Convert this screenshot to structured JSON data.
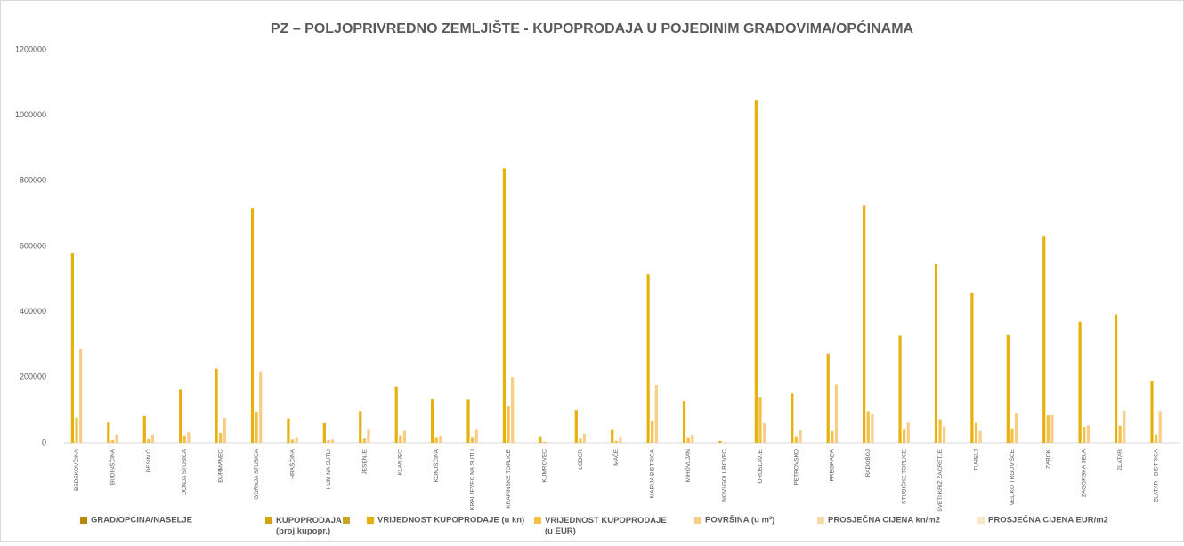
{
  "chart_data": {
    "type": "bar",
    "title": "PZ – POLJOPRIVREDNO ZEMLJIŠTE - KUPOPRODAJA  U POJEDINIM GRADOVIMA/OPĆINAMA",
    "categories": [
      "BEDEKOVČINA",
      "BUDINŠČINA",
      "DESINIĆ",
      "DONJA STUBICA",
      "ĐURMANEC",
      "GORNJA STUBICA",
      "HRAŠĆINA",
      "HUM NA SUTLI",
      "JESENJE",
      "KLANJEC",
      "KONJŠČINA",
      "KRALJEVEC NA SUTLI",
      "KRAPINSKE TOPLICE",
      "KUMROVEC",
      "LOBOR",
      "MAČE",
      "MARIJA BISTRICA",
      "MIHOVLJAN",
      "NOVI GOLUBOVEC",
      "OROSLAVJE",
      "PETROVSKO",
      "PREGRADA",
      "RADOBOJ",
      "STUBIČKE TOPLICE",
      "SVETI KRIŽ ZAČRETJE",
      "TUHELJ",
      "VELIKO TRGOVIŠĆE",
      "ZABOK",
      "ZAGORSKA SELA",
      "ZLATAR",
      "ZLATAR - BISTRICA"
    ],
    "series": [
      {
        "name": "GRAD/OPĆINA/NASELJE",
        "color": "#b8860b",
        "values": [
          null,
          null,
          null,
          null,
          null,
          null,
          null,
          null,
          null,
          null,
          null,
          null,
          null,
          null,
          null,
          null,
          null,
          null,
          null,
          null,
          null,
          null,
          null,
          null,
          null,
          null,
          null,
          null,
          null,
          null,
          null
        ]
      },
      {
        "name": "KUPOPRODAJA (broj kupopr.)",
        "color": "#d4a20e",
        "values": [
          null,
          null,
          null,
          null,
          null,
          null,
          null,
          null,
          null,
          null,
          null,
          null,
          null,
          null,
          null,
          null,
          null,
          null,
          null,
          null,
          null,
          null,
          null,
          null,
          null,
          null,
          null,
          null,
          null,
          null,
          null
        ]
      },
      {
        "name": "VRIJEDNOST KUPOPRODAJE (u kn)",
        "color": "#e8b00f",
        "values": [
          580000,
          62000,
          82000,
          162000,
          226000,
          716000,
          75000,
          60000,
          97000,
          172000,
          133000,
          132000,
          838000,
          20000,
          100000,
          42000,
          515000,
          127000,
          6000,
          1045000,
          151000,
          272000,
          724000,
          327000,
          546000,
          459000,
          329000,
          632000,
          370000,
          392000,
          188000
        ]
      },
      {
        "name": "VRIJEDNOST KUPOPRODAJE (u EUR)",
        "color": "#f3bf45",
        "values": [
          77000,
          8000,
          11000,
          22000,
          30000,
          95000,
          10000,
          8000,
          13000,
          23000,
          18000,
          18000,
          111000,
          3000,
          13000,
          6000,
          68000,
          17000,
          1000,
          139000,
          20000,
          36000,
          96000,
          43000,
          72000,
          61000,
          44000,
          84000,
          49000,
          52000,
          25000
        ]
      },
      {
        "name": "POVRŠINA (u m²)",
        "color": "#f8cd85",
        "values": [
          288000,
          25000,
          25000,
          32000,
          76000,
          218000,
          18000,
          10000,
          43000,
          37000,
          22000,
          42000,
          200000,
          2000,
          28000,
          18000,
          176000,
          25000,
          1000,
          60000,
          38000,
          178000,
          88000,
          62000,
          50000,
          36000,
          92000,
          84000,
          53000,
          98000,
          97000
        ]
      },
      {
        "name": "PROSJEČNA CIJENA kn/m2",
        "color": "#f9d9a5",
        "values": [
          null,
          null,
          null,
          null,
          null,
          null,
          null,
          null,
          null,
          null,
          null,
          null,
          null,
          null,
          null,
          null,
          null,
          null,
          null,
          null,
          null,
          null,
          null,
          null,
          null,
          null,
          null,
          null,
          null,
          null,
          null
        ]
      },
      {
        "name": "PROSJEČNA CIJENA EUR/m2",
        "color": "#fbe6c2",
        "values": [
          null,
          null,
          null,
          null,
          null,
          null,
          null,
          null,
          null,
          null,
          null,
          null,
          null,
          null,
          null,
          null,
          null,
          null,
          null,
          null,
          null,
          null,
          null,
          null,
          null,
          null,
          null,
          null,
          null,
          null,
          null
        ]
      }
    ],
    "ylim": [
      0,
      1200000
    ],
    "yticks": [
      0,
      200000,
      400000,
      600000,
      800000,
      1000000,
      1200000
    ],
    "grid": false
  }
}
